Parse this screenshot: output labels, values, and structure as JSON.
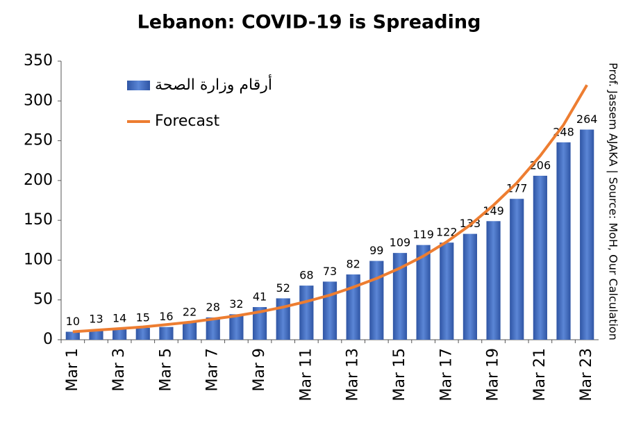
{
  "chart_data": {
    "type": "bar",
    "title": "Lebanon: COVID-19 is Spreading",
    "side_note": "Prof. Jassem AJAKA | Source: MoH, Our Calculation",
    "categories": [
      "Mar 1",
      null,
      "Mar 3",
      null,
      "Mar 5",
      null,
      "Mar 7",
      null,
      "Mar 9",
      null,
      "Mar 11",
      null,
      "Mar 13",
      null,
      "Mar 15",
      null,
      "Mar 17",
      null,
      "Mar 19",
      null,
      "Mar 21",
      null,
      "Mar 23"
    ],
    "series": [
      {
        "name": "أرقام وزارة الصحة",
        "type": "bar",
        "color": "#4472c4",
        "values": [
          10,
          13,
          14,
          15,
          16,
          22,
          28,
          32,
          41,
          52,
          68,
          73,
          82,
          99,
          109,
          119,
          122,
          133,
          149,
          177,
          206,
          248,
          264
        ]
      },
      {
        "name": "Forecast",
        "type": "line",
        "color": "#ed7d31",
        "values": [
          10,
          12,
          14,
          16,
          19,
          22,
          26,
          30,
          35,
          41,
          48,
          56,
          66,
          77,
          90,
          105,
          123,
          144,
          169,
          197,
          231,
          270,
          320
        ]
      }
    ],
    "ylim": [
      0,
      350
    ],
    "yticks": [
      0,
      50,
      100,
      150,
      200,
      250,
      300,
      350
    ],
    "grid": false,
    "legend": "top-left"
  }
}
